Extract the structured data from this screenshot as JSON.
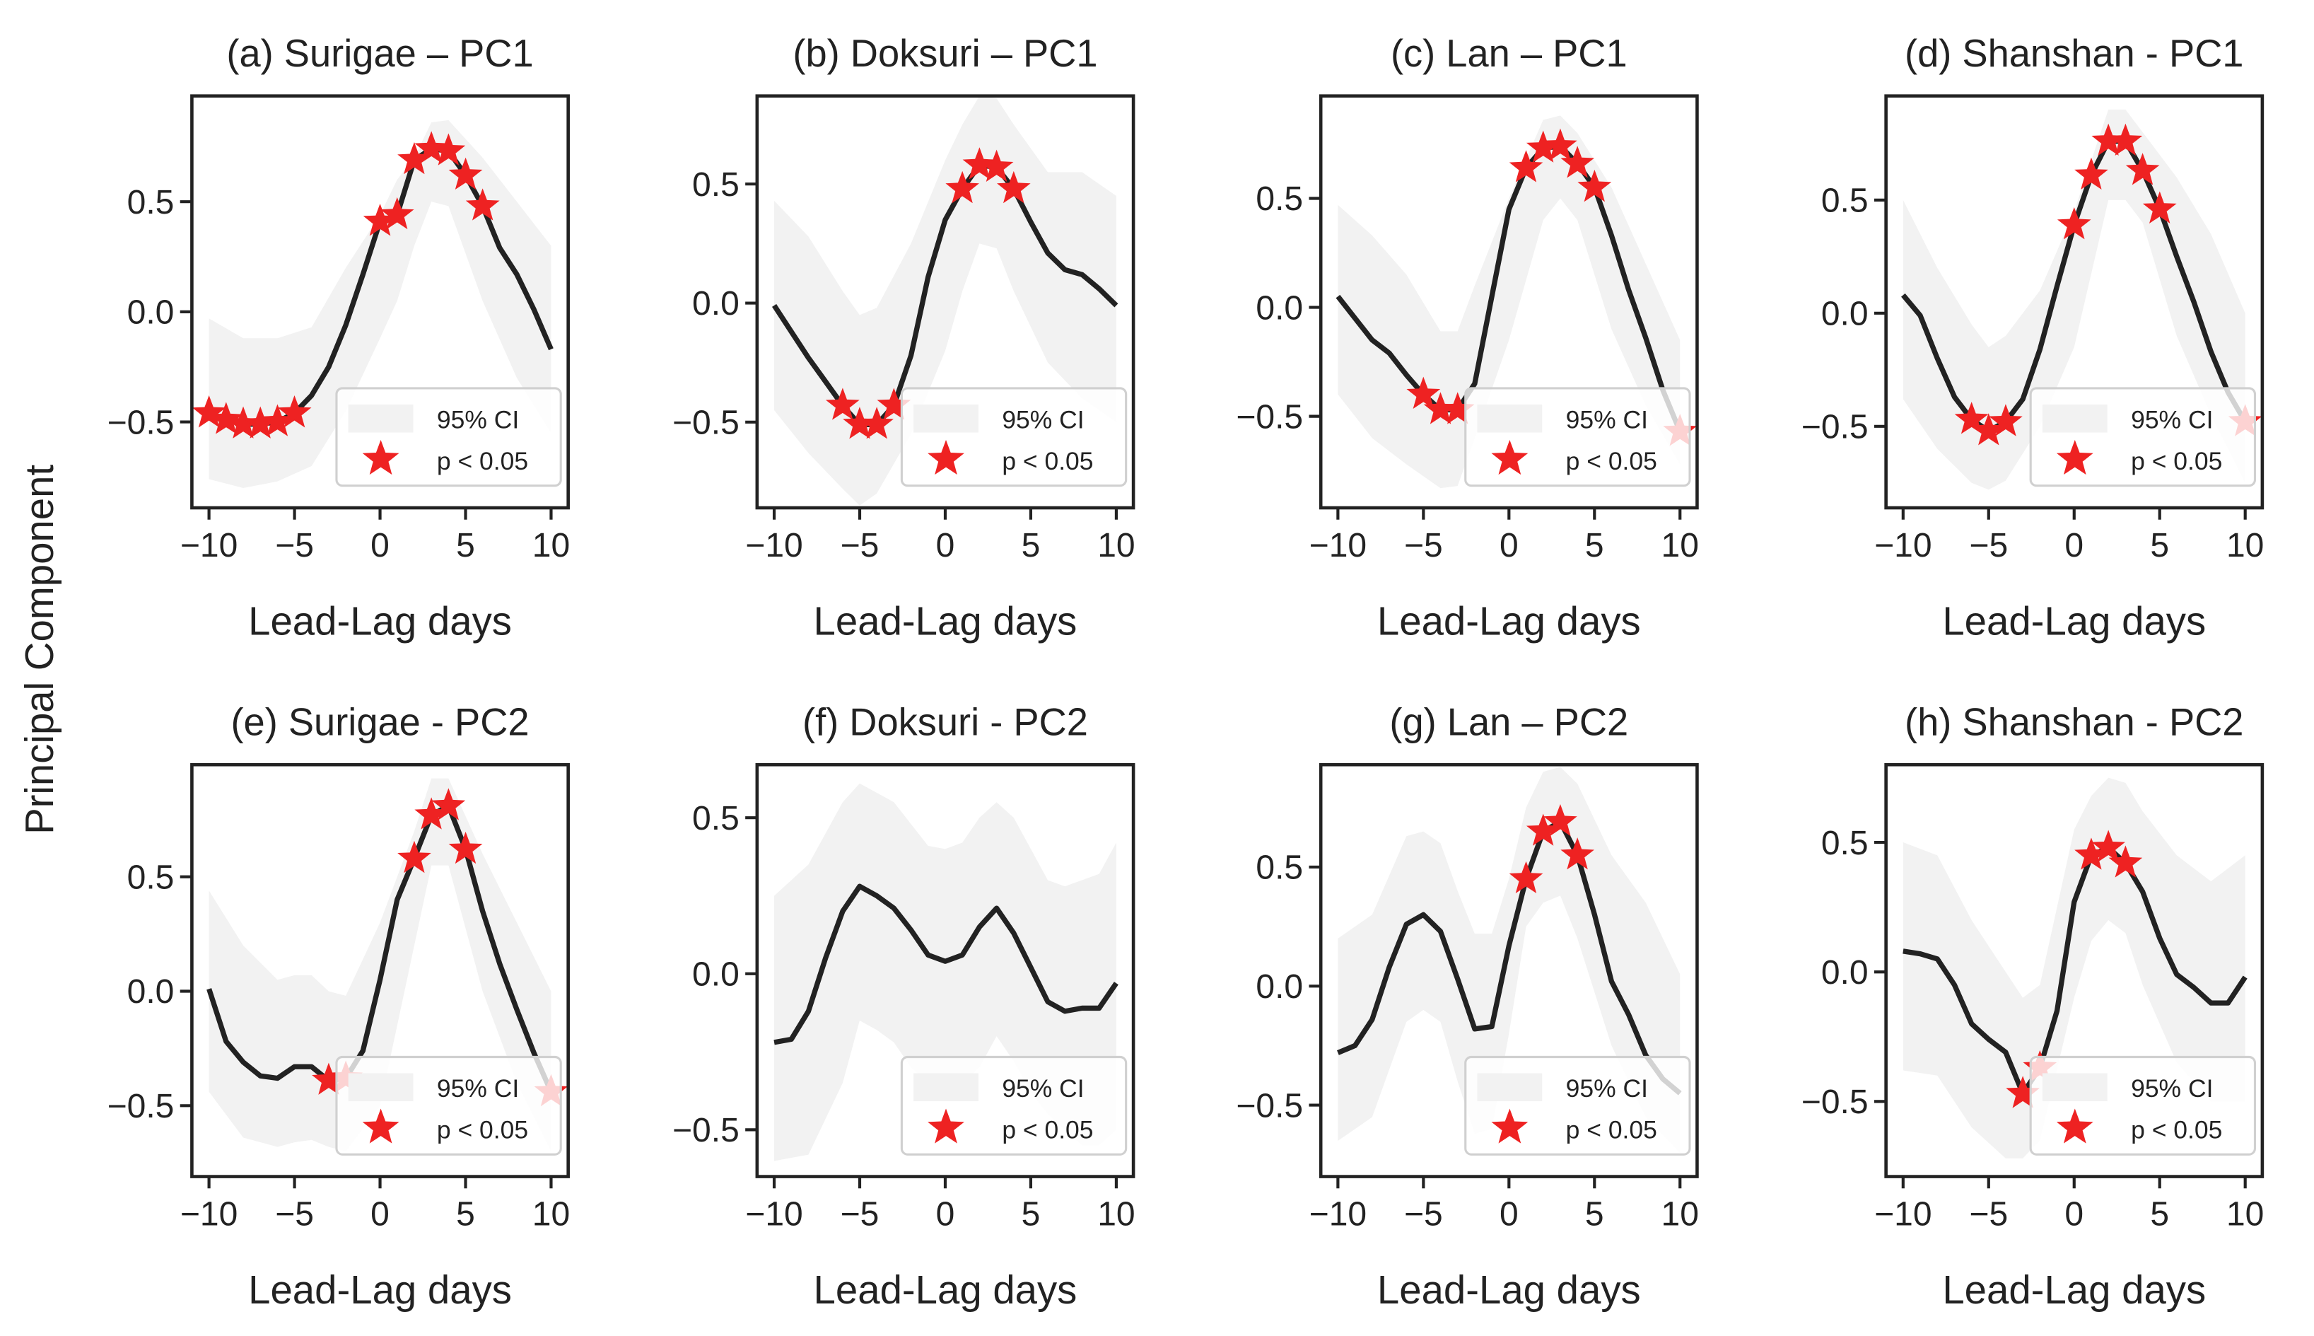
{
  "figure": {
    "ylabel": "Principal Component",
    "colors": {
      "line": "#222222",
      "ci_fill": "#f2f2f2",
      "star": "#ee2222",
      "axes": "#222222"
    }
  },
  "chart_data": [
    {
      "type": "line",
      "title": "(a) Surigae – PC1",
      "xlabel": "Lead-Lag days",
      "xlim": [
        -11,
        11
      ],
      "ylim": [
        -0.89,
        0.98
      ],
      "xticks": [
        -10,
        -5,
        0,
        5,
        10
      ],
      "yticks": [
        -0.5,
        0.0,
        0.5
      ],
      "legend": {
        "placement": "lower-right",
        "entries": [
          "95% CI",
          "p < 0.05"
        ]
      },
      "x": [
        -10,
        -9,
        -8,
        -7,
        -6,
        -5,
        -4,
        -3,
        -2,
        -1,
        0,
        1,
        2,
        3,
        4,
        5,
        6,
        7,
        8,
        9,
        10
      ],
      "y": [
        -0.46,
        -0.49,
        -0.51,
        -0.51,
        -0.5,
        -0.46,
        -0.38,
        -0.25,
        -0.06,
        0.17,
        0.41,
        0.44,
        0.69,
        0.74,
        0.73,
        0.62,
        0.48,
        0.29,
        0.17,
        0.01,
        -0.17
      ],
      "significant_x": [
        -10,
        -9,
        -8,
        -7,
        -6,
        -5,
        0,
        1,
        2,
        3,
        4,
        5,
        6
      ],
      "ci": {
        "x": [
          -10,
          -8,
          -6,
          -4,
          -2,
          0,
          1,
          2,
          3,
          4,
          6,
          8,
          10
        ],
        "lower": [
          -0.76,
          -0.8,
          -0.77,
          -0.7,
          -0.45,
          -0.12,
          0.05,
          0.3,
          0.5,
          0.48,
          0.05,
          -0.3,
          -0.55
        ],
        "upper": [
          -0.03,
          -0.12,
          -0.12,
          -0.07,
          0.2,
          0.44,
          0.6,
          0.7,
          0.86,
          0.87,
          0.7,
          0.5,
          0.3
        ]
      }
    },
    {
      "type": "line",
      "title": "(b) Doksuri – PC1",
      "xlabel": "Lead-Lag days",
      "xlim": [
        -11,
        11
      ],
      "ylim": [
        -0.86,
        0.87
      ],
      "xticks": [
        -10,
        -5,
        0,
        5,
        10
      ],
      "yticks": [
        -0.5,
        0.0,
        0.5
      ],
      "legend": {
        "placement": "lower-right",
        "entries": [
          "95% CI",
          "p < 0.05"
        ]
      },
      "x": [
        -10,
        -9,
        -8,
        -7,
        -6,
        -5,
        -4,
        -3,
        -2,
        -1,
        0,
        1,
        2,
        3,
        4,
        5,
        6,
        7,
        8,
        9,
        10
      ],
      "y": [
        -0.01,
        -0.12,
        -0.23,
        -0.33,
        -0.43,
        -0.51,
        -0.51,
        -0.43,
        -0.22,
        0.11,
        0.35,
        0.48,
        0.58,
        0.57,
        0.48,
        0.34,
        0.21,
        0.14,
        0.12,
        0.06,
        -0.01
      ],
      "significant_x": [
        -6,
        -5,
        -4,
        -3,
        1,
        2,
        3,
        4
      ],
      "ci": {
        "x": [
          -10,
          -8,
          -6,
          -5,
          -4,
          -2,
          0,
          1,
          2,
          3,
          4,
          6,
          8,
          10
        ],
        "lower": [
          -0.45,
          -0.63,
          -0.78,
          -0.85,
          -0.8,
          -0.55,
          -0.2,
          0.05,
          0.25,
          0.23,
          0.05,
          -0.25,
          -0.4,
          -0.5
        ],
        "upper": [
          0.43,
          0.28,
          0.05,
          -0.05,
          -0.02,
          0.25,
          0.6,
          0.75,
          0.87,
          0.86,
          0.75,
          0.55,
          0.55,
          0.45
        ]
      }
    },
    {
      "type": "line",
      "title": "(c) Lan – PC1",
      "xlabel": "Lead-Lag days",
      "xlim": [
        -11,
        11
      ],
      "ylim": [
        -0.92,
        0.97
      ],
      "xticks": [
        -10,
        -5,
        0,
        5,
        10
      ],
      "yticks": [
        -0.5,
        0.0,
        0.5
      ],
      "legend": {
        "placement": "lower-right",
        "entries": [
          "95% CI",
          "p < 0.05"
        ]
      },
      "x": [
        -10,
        -9,
        -8,
        -7,
        -6,
        -5,
        -4,
        -3,
        -2,
        -1,
        0,
        1,
        2,
        3,
        4,
        5,
        6,
        7,
        8,
        9,
        10
      ],
      "y": [
        0.05,
        -0.05,
        -0.15,
        -0.21,
        -0.31,
        -0.4,
        -0.47,
        -0.47,
        -0.35,
        0.05,
        0.45,
        0.64,
        0.73,
        0.74,
        0.66,
        0.55,
        0.33,
        0.08,
        -0.14,
        -0.38,
        -0.57
      ],
      "significant_x": [
        -5,
        -4,
        -3,
        1,
        2,
        3,
        4,
        5,
        10
      ],
      "ci": {
        "x": [
          -10,
          -8,
          -6,
          -4,
          -3,
          -2,
          0,
          2,
          3,
          4,
          6,
          8,
          10
        ],
        "lower": [
          -0.4,
          -0.6,
          -0.72,
          -0.83,
          -0.82,
          -0.6,
          -0.15,
          0.4,
          0.5,
          0.4,
          -0.1,
          -0.45,
          -0.72
        ],
        "upper": [
          0.47,
          0.33,
          0.15,
          -0.11,
          -0.11,
          0.1,
          0.5,
          0.86,
          0.88,
          0.8,
          0.55,
          0.2,
          -0.15
        ]
      }
    },
    {
      "type": "line",
      "title": "(d) Shanshan - PC1",
      "xlabel": "Lead-Lag days",
      "xlim": [
        -11,
        11
      ],
      "ylim": [
        -0.86,
        0.96
      ],
      "xticks": [
        -10,
        -5,
        0,
        5,
        10
      ],
      "yticks": [
        -0.5,
        0.0,
        0.5
      ],
      "legend": {
        "placement": "lower-right",
        "entries": [
          "95% CI",
          "p < 0.05"
        ]
      },
      "x": [
        -10,
        -9,
        -8,
        -7,
        -6,
        -5,
        -4,
        -3,
        -2,
        -1,
        0,
        1,
        2,
        3,
        4,
        5,
        6,
        7,
        8,
        9,
        10
      ],
      "y": [
        0.08,
        -0.01,
        -0.2,
        -0.37,
        -0.47,
        -0.52,
        -0.48,
        -0.38,
        -0.16,
        0.12,
        0.39,
        0.61,
        0.76,
        0.76,
        0.63,
        0.46,
        0.25,
        0.05,
        -0.17,
        -0.35,
        -0.48
      ],
      "significant_x": [
        -6,
        -5,
        -4,
        0,
        1,
        2,
        3,
        4,
        5,
        10
      ],
      "ci": {
        "x": [
          -10,
          -8,
          -6,
          -5,
          -4,
          -2,
          0,
          2,
          3,
          4,
          6,
          8,
          10
        ],
        "lower": [
          -0.38,
          -0.6,
          -0.75,
          -0.78,
          -0.74,
          -0.5,
          -0.15,
          0.5,
          0.5,
          0.4,
          -0.1,
          -0.45,
          -0.75
        ],
        "upper": [
          0.5,
          0.2,
          -0.05,
          -0.15,
          -0.1,
          0.1,
          0.45,
          0.9,
          0.9,
          0.8,
          0.6,
          0.35,
          0.0
        ]
      }
    },
    {
      "type": "line",
      "title": "(e) Surigae - PC2",
      "xlabel": "Lead-Lag days",
      "xlim": [
        -11,
        11
      ],
      "ylim": [
        -0.81,
        0.99
      ],
      "xticks": [
        -10,
        -5,
        0,
        5,
        10
      ],
      "yticks": [
        -0.5,
        0.0,
        0.5
      ],
      "legend": {
        "placement": "lower-right",
        "entries": [
          "95% CI",
          "p < 0.05"
        ]
      },
      "x": [
        -10,
        -9,
        -8,
        -7,
        -6,
        -5,
        -4,
        -3,
        -2,
        -1,
        0,
        1,
        2,
        3,
        4,
        5,
        6,
        7,
        8,
        9,
        10
      ],
      "y": [
        0.01,
        -0.22,
        -0.31,
        -0.37,
        -0.38,
        -0.33,
        -0.33,
        -0.39,
        -0.38,
        -0.26,
        0.05,
        0.4,
        0.58,
        0.77,
        0.81,
        0.62,
        0.35,
        0.12,
        -0.08,
        -0.27,
        -0.44
      ],
      "significant_x": [
        -3,
        -2,
        2,
        3,
        4,
        5,
        10
      ],
      "ci": {
        "x": [
          -10,
          -8,
          -6,
          -5,
          -4,
          -3,
          -2,
          0,
          2,
          3,
          4,
          6,
          8,
          10
        ],
        "lower": [
          -0.44,
          -0.64,
          -0.68,
          -0.66,
          -0.65,
          -0.68,
          -0.7,
          -0.5,
          0.2,
          0.55,
          0.55,
          0.0,
          -0.4,
          -0.7
        ],
        "upper": [
          0.44,
          0.2,
          0.05,
          0.07,
          0.07,
          0.0,
          -0.02,
          0.3,
          0.7,
          0.93,
          0.93,
          0.6,
          0.3,
          0.0
        ]
      }
    },
    {
      "type": "line",
      "title": "(f) Doksuri - PC2",
      "xlabel": "Lead-Lag days",
      "xlim": [
        -11,
        11
      ],
      "ylim": [
        -0.65,
        0.67
      ],
      "xticks": [
        -10,
        -5,
        0,
        5,
        10
      ],
      "yticks": [
        -0.5,
        0.0,
        0.5
      ],
      "legend": {
        "placement": "lower-right",
        "entries": [
          "95% CI",
          "p < 0.05"
        ]
      },
      "x": [
        -10,
        -9,
        -8,
        -7,
        -6,
        -5,
        -4,
        -3,
        -2,
        -1,
        0,
        1,
        2,
        3,
        4,
        5,
        6,
        7,
        8,
        9,
        10
      ],
      "y": [
        -0.22,
        -0.21,
        -0.12,
        0.05,
        0.2,
        0.28,
        0.25,
        0.21,
        0.14,
        0.06,
        0.04,
        0.06,
        0.15,
        0.21,
        0.13,
        0.02,
        -0.09,
        -0.12,
        -0.11,
        -0.11,
        -0.03
      ],
      "significant_x": [],
      "ci": {
        "x": [
          -10,
          -8,
          -6,
          -5,
          -4,
          -3,
          -2,
          -1,
          0,
          1,
          2,
          3,
          4,
          5,
          6,
          7,
          8,
          9,
          10
        ],
        "lower": [
          -0.6,
          -0.58,
          -0.35,
          -0.15,
          -0.18,
          -0.22,
          -0.3,
          -0.35,
          -0.38,
          -0.35,
          -0.3,
          -0.2,
          -0.28,
          -0.38,
          -0.45,
          -0.5,
          -0.55,
          -0.55,
          -0.5
        ],
        "upper": [
          0.25,
          0.35,
          0.55,
          0.61,
          0.58,
          0.55,
          0.48,
          0.41,
          0.4,
          0.42,
          0.5,
          0.55,
          0.5,
          0.4,
          0.3,
          0.28,
          0.3,
          0.32,
          0.42
        ]
      }
    },
    {
      "type": "line",
      "title": "(g) Lan – PC2",
      "xlabel": "Lead-Lag days",
      "xlim": [
        -11,
        11
      ],
      "ylim": [
        -0.8,
        0.93
      ],
      "xticks": [
        -10,
        -5,
        0,
        5,
        10
      ],
      "yticks": [
        -0.5,
        0.0,
        0.5
      ],
      "legend": {
        "placement": "lower-right",
        "entries": [
          "95% CI",
          "p < 0.05"
        ]
      },
      "x": [
        -10,
        -9,
        -8,
        -7,
        -6,
        -5,
        -4,
        -3,
        -2,
        -1,
        0,
        1,
        2,
        3,
        4,
        5,
        6,
        7,
        8,
        9,
        10
      ],
      "y": [
        -0.28,
        -0.25,
        -0.14,
        0.08,
        0.26,
        0.3,
        0.23,
        0.03,
        -0.18,
        -0.17,
        0.17,
        0.45,
        0.65,
        0.69,
        0.55,
        0.3,
        0.02,
        -0.12,
        -0.29,
        -0.39,
        -0.45
      ],
      "significant_x": [
        1,
        2,
        3,
        4
      ],
      "ci": {
        "x": [
          -10,
          -8,
          -6,
          -5,
          -4,
          -3,
          -2,
          -1,
          0,
          1,
          2,
          3,
          4,
          6,
          8,
          10
        ],
        "lower": [
          -0.65,
          -0.55,
          -0.15,
          -0.1,
          -0.15,
          -0.4,
          -0.62,
          -0.6,
          -0.2,
          0.25,
          0.35,
          0.38,
          0.2,
          -0.25,
          -0.55,
          -0.7
        ],
        "upper": [
          0.2,
          0.3,
          0.63,
          0.65,
          0.6,
          0.4,
          0.22,
          0.22,
          0.45,
          0.75,
          0.9,
          0.92,
          0.85,
          0.55,
          0.35,
          0.05
        ]
      }
    },
    {
      "type": "line",
      "title": "(h) Shanshan - PC2",
      "xlabel": "Lead-Lag days",
      "xlim": [
        -11,
        11
      ],
      "ylim": [
        -0.79,
        0.8
      ],
      "xticks": [
        -10,
        -5,
        0,
        5,
        10
      ],
      "yticks": [
        -0.5,
        0.0,
        0.5
      ],
      "legend": {
        "placement": "lower-right",
        "entries": [
          "95% CI",
          "p < 0.05"
        ]
      },
      "x": [
        -10,
        -9,
        -8,
        -7,
        -6,
        -5,
        -4,
        -3,
        -2,
        -1,
        0,
        1,
        2,
        3,
        4,
        5,
        6,
        7,
        8,
        9,
        10
      ],
      "y": [
        0.08,
        0.07,
        0.05,
        -0.05,
        -0.2,
        -0.26,
        -0.31,
        -0.47,
        -0.37,
        -0.15,
        0.27,
        0.45,
        0.48,
        0.42,
        0.31,
        0.13,
        -0.01,
        -0.06,
        -0.12,
        -0.12,
        -0.02
      ],
      "significant_x": [
        -3,
        -2,
        1,
        2,
        3
      ],
      "ci": {
        "x": [
          -10,
          -8,
          -6,
          -4,
          -3,
          -2,
          0,
          1,
          2,
          3,
          4,
          6,
          8,
          10
        ],
        "lower": [
          -0.38,
          -0.4,
          -0.6,
          -0.72,
          -0.72,
          -0.65,
          -0.1,
          0.12,
          0.2,
          0.15,
          -0.05,
          -0.35,
          -0.5,
          -0.5
        ],
        "upper": [
          0.5,
          0.45,
          0.2,
          0.0,
          -0.1,
          -0.05,
          0.55,
          0.68,
          0.75,
          0.73,
          0.62,
          0.45,
          0.35,
          0.45
        ]
      }
    }
  ]
}
